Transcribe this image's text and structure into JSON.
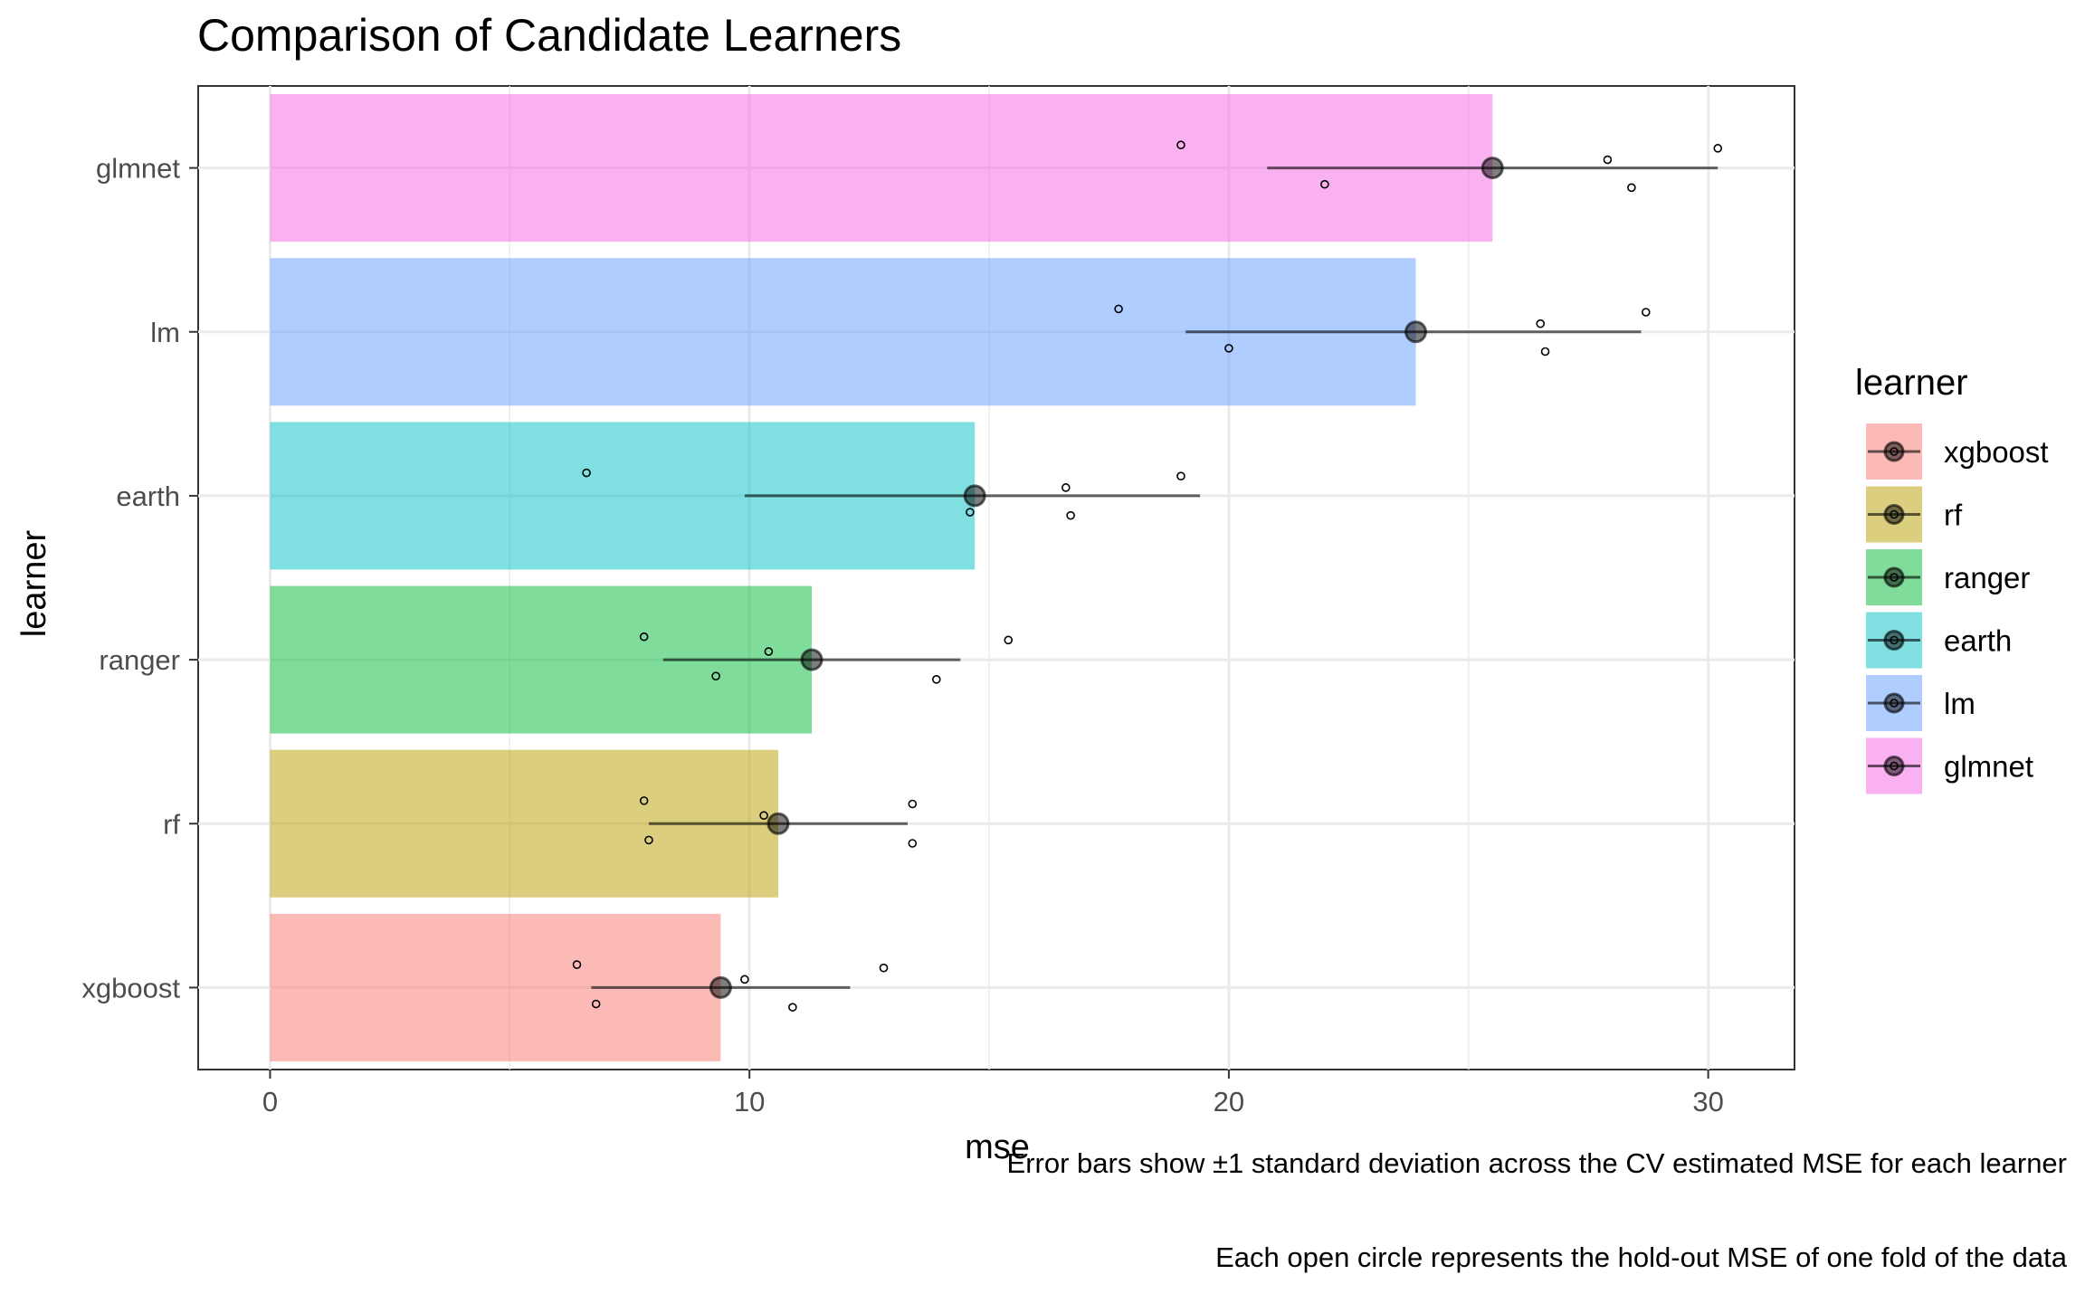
{
  "chart_data": {
    "type": "bar",
    "title": "Comparison of Candidate Learners",
    "xlabel": "mse",
    "ylabel": "learner",
    "xlim": [
      -1.5,
      31.8
    ],
    "x_ticks": [
      0,
      10,
      20,
      30
    ],
    "grid": true,
    "orientation": "horizontal",
    "categories": [
      "xgboost",
      "rf",
      "ranger",
      "earth",
      "lm",
      "glmnet"
    ],
    "colors": [
      "#F8766D",
      "#B79F00",
      "#00BA38",
      "#00BFC4",
      "#619CFF",
      "#F564E3"
    ],
    "values": [
      9.4,
      10.6,
      11.3,
      14.7,
      23.9,
      25.5
    ],
    "sd_lower": [
      6.7,
      7.9,
      8.2,
      9.9,
      19.1,
      20.8
    ],
    "sd_upper": [
      12.1,
      13.3,
      14.4,
      19.4,
      28.6,
      30.2
    ],
    "folds": [
      [
        6.4,
        6.8,
        9.9,
        10.9,
        12.8
      ],
      [
        7.8,
        7.9,
        10.3,
        13.4,
        13.4
      ],
      [
        7.8,
        9.3,
        10.4,
        13.9,
        15.4
      ],
      [
        6.6,
        14.6,
        16.6,
        16.7,
        19.0
      ],
      [
        17.7,
        20.0,
        26.5,
        26.6,
        28.7
      ],
      [
        19.0,
        22.0,
        27.9,
        28.4,
        30.2
      ]
    ],
    "legend": {
      "title": "learner",
      "position": "right",
      "entries": [
        "xgboost",
        "rf",
        "ranger",
        "earth",
        "lm",
        "glmnet"
      ]
    },
    "captions": [
      "Error bars show ±1 standard deviation across the CV estimated MSE for each learner",
      "Each open circle represents the hold-out MSE of one fold of the data"
    ]
  }
}
